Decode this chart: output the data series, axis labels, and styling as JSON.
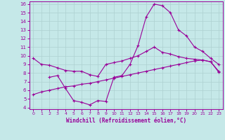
{
  "xlabel": "Windchill (Refroidissement éolien,°C)",
  "xlim": [
    0,
    23
  ],
  "ylim": [
    4,
    16
  ],
  "yticks": [
    4,
    5,
    6,
    7,
    8,
    9,
    10,
    11,
    12,
    13,
    14,
    15,
    16
  ],
  "xticks": [
    0,
    1,
    2,
    3,
    4,
    5,
    6,
    7,
    8,
    9,
    10,
    11,
    12,
    13,
    14,
    15,
    16,
    17,
    18,
    19,
    20,
    21,
    22,
    23
  ],
  "background_color": "#c5e8e8",
  "grid_color": "#add0d0",
  "line_color": "#990099",
  "line1_x": [
    0,
    1,
    2,
    3,
    4,
    5,
    6,
    7,
    8,
    9,
    10,
    11,
    12,
    13,
    14,
    15,
    16,
    17,
    18,
    19,
    20,
    21,
    22,
    23
  ],
  "line1_y": [
    9.7,
    9.0,
    8.9,
    8.6,
    8.3,
    8.2,
    8.2,
    7.8,
    7.6,
    9.0,
    9.2,
    9.4,
    9.7,
    10.0,
    10.5,
    11.0,
    10.4,
    10.2,
    9.9,
    9.7,
    9.6,
    9.5,
    9.3,
    8.2
  ],
  "line2_x": [
    2,
    3,
    4,
    5,
    6,
    7,
    8,
    9,
    10,
    11,
    12,
    13,
    14,
    15,
    16,
    17,
    18,
    19,
    20,
    21,
    22,
    23
  ],
  "line2_y": [
    7.5,
    7.7,
    6.2,
    4.8,
    4.6,
    4.3,
    4.8,
    4.7,
    7.5,
    7.7,
    9.0,
    11.2,
    14.5,
    16.0,
    15.8,
    15.0,
    13.0,
    12.3,
    11.0,
    10.5,
    9.7,
    9.0
  ],
  "line3_x": [
    0,
    1,
    2,
    3,
    4,
    5,
    6,
    7,
    8,
    9,
    10,
    11,
    12,
    13,
    14,
    15,
    16,
    17,
    18,
    19,
    20,
    21,
    22,
    23
  ],
  "line3_y": [
    5.5,
    5.8,
    6.0,
    6.2,
    6.4,
    6.5,
    6.7,
    6.8,
    7.0,
    7.2,
    7.4,
    7.6,
    7.8,
    8.0,
    8.2,
    8.4,
    8.6,
    8.8,
    9.0,
    9.2,
    9.4,
    9.5,
    9.3,
    8.1
  ]
}
